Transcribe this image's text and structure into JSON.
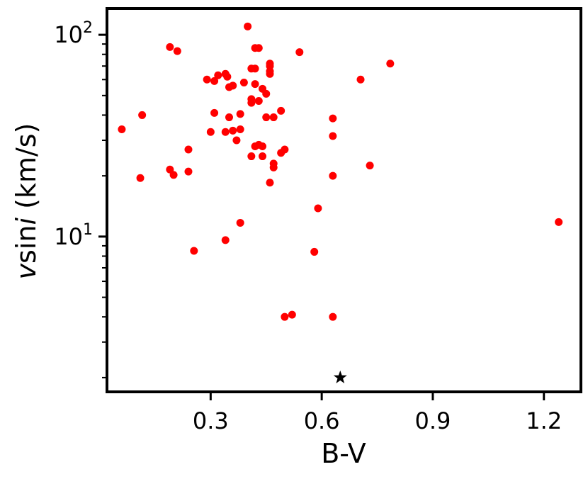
{
  "chart_data": {
    "type": "scatter",
    "xlabel": "B-V",
    "ylabel_main": "v",
    "ylabel_rest": "sin",
    "ylabel_italic": "i",
    "ylabel_units": " (km/s)",
    "xlim": [
      0.02,
      1.3
    ],
    "ylim": [
      1.7,
      135
    ],
    "y_scale": "log",
    "grid": false,
    "x_ticks": [
      {
        "value": 0.3,
        "label": "0.3"
      },
      {
        "value": 0.6,
        "label": "0.6"
      },
      {
        "value": 0.9,
        "label": "0.9"
      },
      {
        "value": 1.2,
        "label": "1.2"
      }
    ],
    "y_major_ticks": [
      {
        "value": 10,
        "base": "10",
        "exp": "1"
      },
      {
        "value": 100,
        "base": "10",
        "exp": "2"
      }
    ],
    "series": [
      {
        "marker": "circle",
        "color": "#ff0000",
        "points": [
          [
            0.06,
            34
          ],
          [
            0.11,
            19.5
          ],
          [
            0.115,
            40
          ],
          [
            0.19,
            87
          ],
          [
            0.21,
            83
          ],
          [
            0.19,
            21.5
          ],
          [
            0.2,
            20.2
          ],
          [
            0.24,
            27
          ],
          [
            0.24,
            21
          ],
          [
            0.255,
            8.5
          ],
          [
            0.29,
            60
          ],
          [
            0.31,
            59
          ],
          [
            0.32,
            63
          ],
          [
            0.34,
            64
          ],
          [
            0.345,
            62
          ],
          [
            0.35,
            55
          ],
          [
            0.36,
            56
          ],
          [
            0.31,
            41
          ],
          [
            0.3,
            33
          ],
          [
            0.34,
            33
          ],
          [
            0.35,
            39
          ],
          [
            0.36,
            33.5
          ],
          [
            0.37,
            30
          ],
          [
            0.38,
            34
          ],
          [
            0.38,
            40.5
          ],
          [
            0.34,
            9.6
          ],
          [
            0.38,
            11.7
          ],
          [
            0.4,
            110
          ],
          [
            0.39,
            58
          ],
          [
            0.41,
            68
          ],
          [
            0.42,
            68
          ],
          [
            0.42,
            86
          ],
          [
            0.43,
            86
          ],
          [
            0.41,
            48
          ],
          [
            0.41,
            46
          ],
          [
            0.43,
            47
          ],
          [
            0.42,
            57
          ],
          [
            0.44,
            54
          ],
          [
            0.45,
            51
          ],
          [
            0.45,
            39
          ],
          [
            0.47,
            39
          ],
          [
            0.46,
            64
          ],
          [
            0.46,
            66
          ],
          [
            0.46,
            70
          ],
          [
            0.46,
            72
          ],
          [
            0.42,
            28
          ],
          [
            0.43,
            28.5
          ],
          [
            0.44,
            28
          ],
          [
            0.41,
            25
          ],
          [
            0.44,
            25
          ],
          [
            0.47,
            23
          ],
          [
            0.47,
            22
          ],
          [
            0.49,
            42
          ],
          [
            0.49,
            26
          ],
          [
            0.5,
            27
          ],
          [
            0.46,
            18.5
          ],
          [
            0.5,
            4.0
          ],
          [
            0.52,
            4.1
          ],
          [
            0.54,
            82
          ],
          [
            0.58,
            8.4
          ],
          [
            0.59,
            13.8
          ],
          [
            0.63,
            38.5
          ],
          [
            0.63,
            31.5
          ],
          [
            0.63,
            20
          ],
          [
            0.63,
            4.0
          ],
          [
            0.705,
            60
          ],
          [
            0.73,
            22.5
          ],
          [
            0.785,
            72
          ],
          [
            1.24,
            11.8
          ]
        ]
      },
      {
        "marker": "star",
        "color": "#000000",
        "points": [
          [
            0.65,
            2.0
          ]
        ]
      }
    ]
  }
}
